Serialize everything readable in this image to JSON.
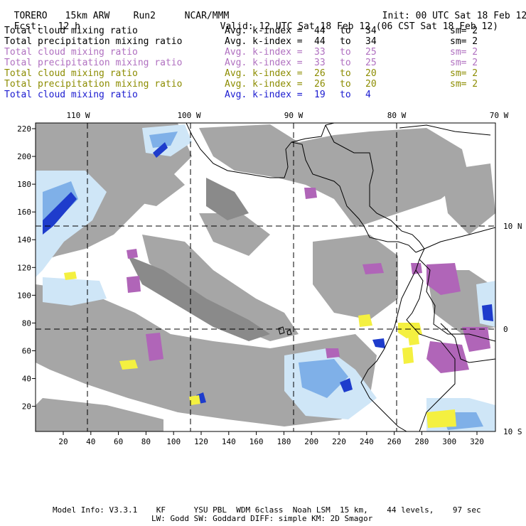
{
  "header": {
    "model": "TORERO",
    "resolution": "15km ARW",
    "run": "Run2",
    "org": "NCAR/MMM",
    "init": "Init: 00 UTC Sat 18 Feb 12",
    "fcst_label": "Fcst:",
    "fcst_value": "12 h",
    "valid": "Valid: 12 UTC Sat 18 Feb 12 (06 CST Sat 18 Feb 12)"
  },
  "legend": [
    {
      "field": "Total cloud mixing ratio",
      "kindex": "Avg. k-index =",
      "from": "44",
      "to_word": "to",
      "to": "34",
      "sm": "sm= 2",
      "color": "#000000"
    },
    {
      "field": "Total precipitation mixing ratio",
      "kindex": "Avg. k-index =",
      "from": "44",
      "to_word": "to",
      "to": "34",
      "sm": "sm= 2",
      "color": "#000000"
    },
    {
      "field": "Total cloud mixing ratio",
      "kindex": "Avg. k-index =",
      "from": "33",
      "to_word": "to",
      "to": "25",
      "sm": "sm= 2",
      "color": "#b070c0"
    },
    {
      "field": "Total precipitation mixing ratio",
      "kindex": "Avg. k-index =",
      "from": "33",
      "to_word": "to",
      "to": "25",
      "sm": "sm= 2",
      "color": "#b070c0"
    },
    {
      "field": "Total cloud mixing ratio",
      "kindex": "Avg. k-index =",
      "from": "26",
      "to_word": "to",
      "to": "20",
      "sm": "sm= 2",
      "color": "#8c8c00"
    },
    {
      "field": "Total precipitation mixing ratio",
      "kindex": "Avg. k-index =",
      "from": "26",
      "to_word": "to",
      "to": "20",
      "sm": "sm= 2",
      "color": "#8c8c00"
    },
    {
      "field": "Total cloud mixing ratio",
      "kindex": "Avg. k-index =",
      "from": "19",
      "to_word": "to",
      "to": "4",
      "sm": "",
      "color": "#1a1ad0"
    }
  ],
  "map": {
    "lon_labels": [
      "110 W",
      "100 W",
      "90 W",
      "80 W",
      "70 W"
    ],
    "lat_labels": [
      "10 N",
      "0",
      "10 S"
    ],
    "y_ticks": [
      "220",
      "200",
      "180",
      "160",
      "140",
      "120",
      "100",
      "80",
      "60",
      "40",
      "20"
    ],
    "x_ticks": [
      "20",
      "40",
      "60",
      "80",
      "100",
      "120",
      "140",
      "160",
      "180",
      "200",
      "220",
      "240",
      "260",
      "280",
      "300",
      "320"
    ],
    "colors": {
      "cloud_gray": "#a6a6a6",
      "cloud_light": "#cfe6f7",
      "cloud_mid": "#7fb0e8",
      "cloud_dark": "#1e3ccc",
      "precip_purple": "#b065b8",
      "precip_yellow": "#f4f040"
    }
  },
  "footer": {
    "line1": "Model Info: V3.3.1    KF      YSU PBL  WDM 6class  Noah LSM  15 km,    44 levels,    97 sec",
    "line2": "LW: Godd SW: Goddard DIFF: simple KM: 2D Smagor"
  }
}
